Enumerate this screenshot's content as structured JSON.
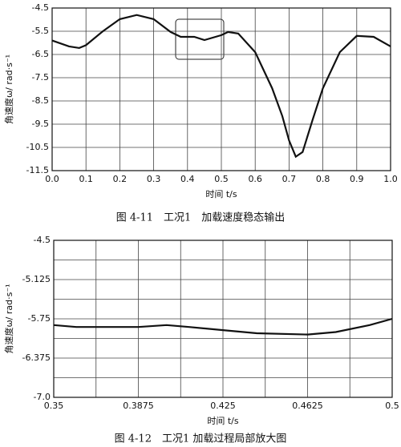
{
  "chart_data": [
    {
      "type": "line",
      "x_label": "时间 t/s",
      "y_label": "角速度ω/ rad·s⁻¹",
      "caption": "图 4-11　工况1　加载速度稳态输出",
      "x": [
        0,
        0.05,
        0.08,
        0.1,
        0.15,
        0.2,
        0.25,
        0.3,
        0.35,
        0.38,
        0.42,
        0.45,
        0.5,
        0.52,
        0.55,
        0.6,
        0.65,
        0.68,
        0.7,
        0.72,
        0.74,
        0.77,
        0.8,
        0.85,
        0.9,
        0.95,
        1.0
      ],
      "values": [
        -5.9,
        -6.15,
        -6.22,
        -6.1,
        -5.5,
        -4.98,
        -4.8,
        -4.98,
        -5.53,
        -5.74,
        -5.74,
        -5.88,
        -5.67,
        -5.53,
        -5.6,
        -6.4,
        -7.95,
        -9.15,
        -10.2,
        -10.9,
        -10.7,
        -9.3,
        -7.95,
        -6.4,
        -5.7,
        -5.74,
        -6.15
      ],
      "color": "#111111",
      "xlim": [
        0,
        1.0
      ],
      "xticks": [
        {
          "value": 0,
          "label": "0.0"
        },
        0.1,
        0.2,
        0.3,
        0.4,
        0.5,
        0.6,
        0.7,
        0.8,
        0.9,
        {
          "value": 1,
          "label": "1.0"
        }
      ],
      "ylim": [
        -11.5,
        -4.5
      ],
      "yticks": [
        -4.5,
        -5.5,
        -6.5,
        -7.5,
        -8.5,
        -9.5,
        -10.5,
        -11.5
      ],
      "grid": true,
      "minor_grid": false
    },
    {
      "type": "line",
      "x_label": "时间 t/s",
      "y_label": "角速度ω/ rad·s⁻¹",
      "caption": "图 4-12　工况1 加载过程局部放大图",
      "x": [
        0.35,
        0.36,
        0.3875,
        0.4,
        0.41,
        0.425,
        0.44,
        0.4625,
        0.475,
        0.49,
        0.5
      ],
      "values": [
        -5.85,
        -5.88,
        -5.88,
        -5.85,
        -5.88,
        -5.93,
        -5.98,
        -6.0,
        -5.96,
        -5.85,
        -5.75
      ],
      "color": "#111111",
      "xlim": [
        0.35,
        0.5
      ],
      "xticks": [
        0.35,
        0.3875,
        0.425,
        0.4625,
        0.5
      ],
      "ylim": [
        -7.0,
        -4.5
      ],
      "yticks": [
        -4.5,
        -5.125,
        -5.75,
        -6.375,
        {
          "value": -7,
          "label": "-7.0"
        }
      ],
      "grid": true,
      "minor_grid": true
    }
  ]
}
